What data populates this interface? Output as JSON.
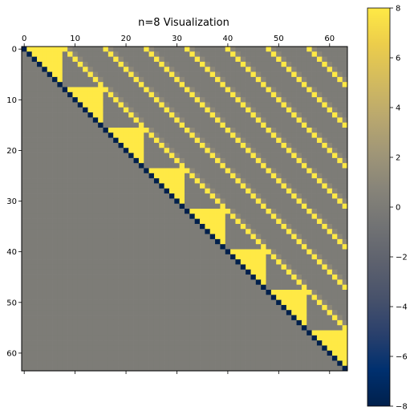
{
  "chart_data": {
    "type": "heatmap",
    "title": "n=8 Visualization",
    "n": 8,
    "rows": 64,
    "cols": 64,
    "xlabel": "",
    "ylabel": "",
    "x_ticks": [
      0,
      10,
      20,
      30,
      40,
      50,
      60
    ],
    "y_ticks": [
      0,
      10,
      20,
      30,
      40,
      50,
      60
    ],
    "x_tick_labels": [
      "0",
      "10",
      "20",
      "30",
      "40",
      "50",
      "60"
    ],
    "y_tick_labels": [
      "0",
      "10",
      "20",
      "30",
      "40",
      "50",
      "60"
    ],
    "x_axis_position": "top",
    "cell_values": {
      "diagonal": -8,
      "within_block_upper": 8,
      "lower_triangle": 0,
      "off_block_background": 0,
      "off_block_stripe_even_offset": 1,
      "off_block_stripe_odd_offset": 8
    },
    "colormap": "cividis",
    "vmin": -8,
    "vmax": 8,
    "colorbar_ticks": [
      8,
      6,
      4,
      2,
      0,
      -2,
      -4,
      -6,
      -8
    ],
    "colorbar_tick_labels": [
      "8",
      "6",
      "4",
      "2",
      "0",
      "−2",
      "−4",
      "−6",
      "−8"
    ],
    "colorbar_stops": [
      "#00204c",
      "#00306f",
      "#2a406c",
      "#48526b",
      "#5e626e",
      "#727374",
      "#878479",
      "#a09677",
      "#baa86e",
      "#d3bb5e",
      "#eccd4b",
      "#ffe945"
    ],
    "grid": false
  }
}
